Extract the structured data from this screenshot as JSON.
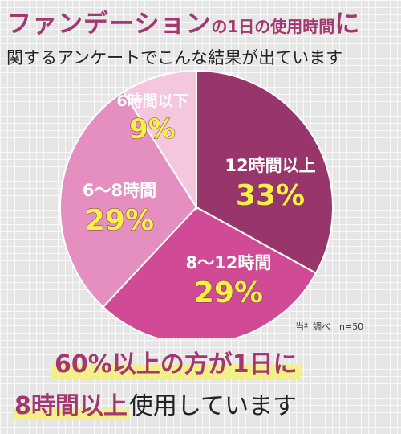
{
  "title": {
    "line1_main": "ファンデーション",
    "line1_sub": "の1日の使用時間",
    "line1_end": "に",
    "line2": "関するアンケートでこんな結果が出ています"
  },
  "colors": {
    "accent": "#a2386f",
    "value_text": "#f6f049",
    "highlight": "#f3f08a"
  },
  "chart_data": {
    "type": "pie",
    "unit": "%",
    "slices": [
      {
        "label": "12時間以上",
        "value": 33,
        "display": "33%",
        "color": "#98366c"
      },
      {
        "label": "8〜12時間",
        "value": 29,
        "display": "29%",
        "color": "#d04a96"
      },
      {
        "label": "6〜8時間",
        "value": 29,
        "display": "29%",
        "color": "#e48fc0"
      },
      {
        "label": "6時間以下",
        "value": 9,
        "display": "9%",
        "color": "#f5c7df"
      }
    ],
    "start": "12 o'clock",
    "direction": "clockwise"
  },
  "source": "当社調べ　n=50",
  "caption": {
    "line1": "60%以上の方が1日に",
    "line2_highlight": "8時間以上",
    "line2_rest": "使用しています"
  }
}
